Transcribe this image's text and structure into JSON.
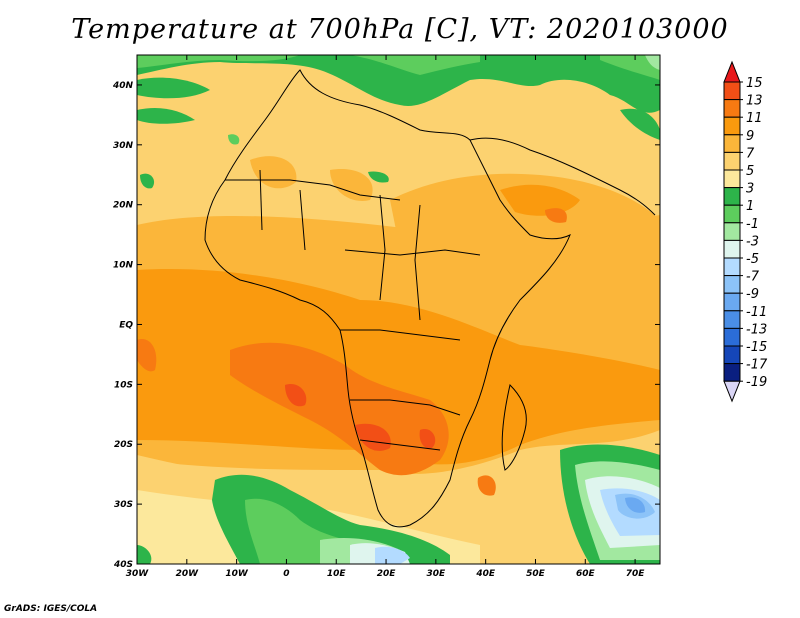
{
  "title": "Temperature at 700hPa [C], VT: 2020103000",
  "credit": "GrADS: IGES/COLA",
  "map": {
    "lon_range": [
      -30,
      75
    ],
    "lat_range": [
      -40,
      45
    ],
    "lon_ticks": [
      "30W",
      "20W",
      "10W",
      "0",
      "10E",
      "20E",
      "30E",
      "40E",
      "50E",
      "60E",
      "70E"
    ],
    "lat_ticks": [
      "40N",
      "30N",
      "20N",
      "10N",
      "EQ",
      "10S",
      "20S",
      "30S",
      "40S"
    ],
    "field": "Temperature at 700hPa",
    "unit": "C"
  },
  "colorbar": {
    "labels": [
      "15",
      "13",
      "11",
      "9",
      "7",
      "5",
      "3",
      "1",
      "-1",
      "-3",
      "-5",
      "-7",
      "-9",
      "-11",
      "-13",
      "-15",
      "-17",
      "-19"
    ],
    "colors": [
      "#e8181b",
      "#f24f16",
      "#f77a12",
      "#fa9a0e",
      "#fbb63a",
      "#fcd270",
      "#fce89c",
      "#2db44a",
      "#5dcd5d",
      "#a2e8a0",
      "#dff5ee",
      "#b3dbff",
      "#8cc3f8",
      "#6aa9f1",
      "#4a8ee6",
      "#2b6dd8",
      "#1546b8",
      "#0a1f80",
      "#dad6f6"
    ]
  }
}
